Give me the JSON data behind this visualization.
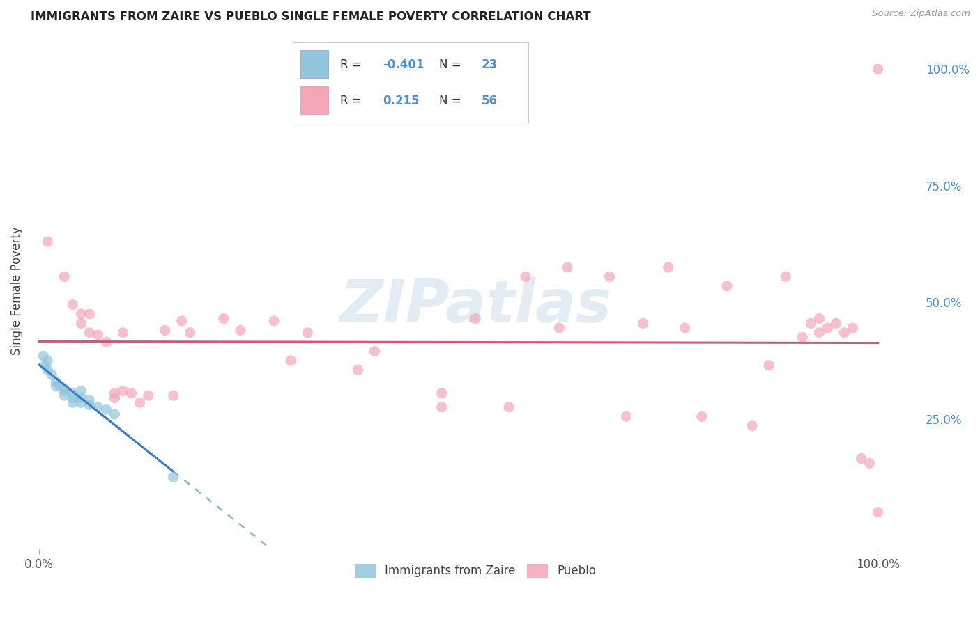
{
  "title": "IMMIGRANTS FROM ZAIRE VS PUEBLO SINGLE FEMALE POVERTY CORRELATION CHART",
  "source": "Source: ZipAtlas.com",
  "ylabel": "Single Female Poverty",
  "legend_label1": "Immigrants from Zaire",
  "legend_label2": "Pueblo",
  "R1": "-0.401",
  "N1": "23",
  "R2": "0.215",
  "N2": "56",
  "blue_color": "#92c5de",
  "pink_color": "#f4a6b8",
  "trendline_blue_solid": "#3a7dbf",
  "trendline_blue_dash": "#8ab4d4",
  "trendline_pink": "#e05080",
  "blue_scatter": [
    [
      0.0005,
      0.385
    ],
    [
      0.0007,
      0.365
    ],
    [
      0.001,
      0.375
    ],
    [
      0.001,
      0.355
    ],
    [
      0.0015,
      0.345
    ],
    [
      0.002,
      0.33
    ],
    [
      0.002,
      0.32
    ],
    [
      0.0025,
      0.32
    ],
    [
      0.003,
      0.315
    ],
    [
      0.003,
      0.31
    ],
    [
      0.003,
      0.3
    ],
    [
      0.004,
      0.305
    ],
    [
      0.004,
      0.295
    ],
    [
      0.004,
      0.285
    ],
    [
      0.005,
      0.31
    ],
    [
      0.005,
      0.295
    ],
    [
      0.005,
      0.285
    ],
    [
      0.006,
      0.29
    ],
    [
      0.006,
      0.28
    ],
    [
      0.007,
      0.275
    ],
    [
      0.008,
      0.27
    ],
    [
      0.009,
      0.26
    ],
    [
      0.016,
      0.125
    ]
  ],
  "pink_scatter": [
    [
      0.001,
      0.63
    ],
    [
      0.003,
      0.555
    ],
    [
      0.004,
      0.495
    ],
    [
      0.005,
      0.475
    ],
    [
      0.005,
      0.455
    ],
    [
      0.006,
      0.475
    ],
    [
      0.006,
      0.435
    ],
    [
      0.007,
      0.43
    ],
    [
      0.008,
      0.415
    ],
    [
      0.009,
      0.305
    ],
    [
      0.009,
      0.295
    ],
    [
      0.01,
      0.31
    ],
    [
      0.01,
      0.435
    ],
    [
      0.011,
      0.305
    ],
    [
      0.012,
      0.285
    ],
    [
      0.013,
      0.3
    ],
    [
      0.015,
      0.44
    ],
    [
      0.016,
      0.3
    ],
    [
      0.017,
      0.46
    ],
    [
      0.018,
      0.435
    ],
    [
      0.022,
      0.465
    ],
    [
      0.024,
      0.44
    ],
    [
      0.028,
      0.46
    ],
    [
      0.03,
      0.375
    ],
    [
      0.032,
      0.435
    ],
    [
      0.038,
      0.355
    ],
    [
      0.04,
      0.395
    ],
    [
      0.048,
      0.305
    ],
    [
      0.048,
      0.275
    ],
    [
      0.052,
      0.465
    ],
    [
      0.056,
      0.275
    ],
    [
      0.058,
      0.555
    ],
    [
      0.062,
      0.445
    ],
    [
      0.063,
      0.575
    ],
    [
      0.068,
      0.555
    ],
    [
      0.07,
      0.255
    ],
    [
      0.072,
      0.455
    ],
    [
      0.075,
      0.575
    ],
    [
      0.077,
      0.445
    ],
    [
      0.079,
      0.255
    ],
    [
      0.082,
      0.535
    ],
    [
      0.085,
      0.235
    ],
    [
      0.087,
      0.365
    ],
    [
      0.089,
      0.555
    ],
    [
      0.091,
      0.425
    ],
    [
      0.092,
      0.455
    ],
    [
      0.093,
      0.435
    ],
    [
      0.093,
      0.465
    ],
    [
      0.094,
      0.445
    ],
    [
      0.095,
      0.455
    ],
    [
      0.096,
      0.435
    ],
    [
      0.097,
      0.445
    ],
    [
      0.098,
      0.165
    ],
    [
      0.099,
      0.155
    ],
    [
      0.1,
      1.0
    ],
    [
      0.1,
      0.05
    ]
  ],
  "xlim": [
    -0.001,
    0.105
  ],
  "ylim": [
    -0.03,
    1.08
  ],
  "xtick_positions": [
    0.0,
    0.1
  ],
  "xtick_labels": [
    "0.0%",
    "100.0%"
  ],
  "ytick_positions_right": [
    1.0,
    0.75,
    0.5,
    0.25
  ],
  "ytick_labels_right": [
    "100.0%",
    "75.0%",
    "50.0%",
    "25.0%"
  ],
  "background_color": "#ffffff",
  "grid_color": "#d8d8d8",
  "marker_size": 120
}
